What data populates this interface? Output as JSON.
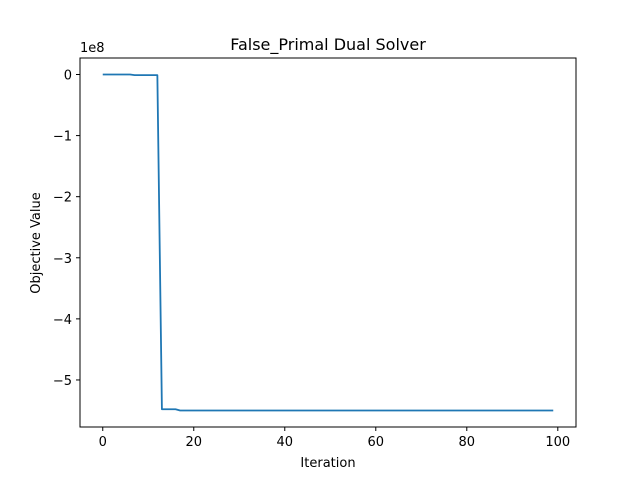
{
  "chart_data": {
    "type": "line",
    "title": "False_Primal Dual Solver",
    "xlabel": "Iteration",
    "ylabel": "Objective Value",
    "y_offset_label": "1e8",
    "y_scale_factor": 100000000,
    "xlim": [
      -5,
      104
    ],
    "ylim": [
      -5.77,
      0.27
    ],
    "x_ticks": [
      0,
      20,
      40,
      60,
      80,
      100
    ],
    "x_tick_labels": [
      "0",
      "20",
      "40",
      "60",
      "80",
      "100"
    ],
    "y_ticks": [
      0,
      -1,
      -2,
      -3,
      -4,
      -5
    ],
    "y_tick_labels": [
      "0",
      "−1",
      "−2",
      "−3",
      "−4",
      "−5"
    ],
    "grid": false,
    "series": [
      {
        "color": "#1f77b4",
        "x": [
          0,
          1,
          2,
          3,
          4,
          5,
          6,
          7,
          8,
          9,
          10,
          11,
          12,
          13,
          14,
          15,
          16,
          17,
          18,
          19,
          20,
          30,
          40,
          50,
          60,
          70,
          80,
          90,
          99
        ],
        "y": [
          0,
          0,
          0,
          0,
          0,
          0,
          0,
          -0.01,
          -0.01,
          -0.01,
          -0.01,
          -0.01,
          -0.01,
          -5.48,
          -5.48,
          -5.48,
          -5.48,
          -5.5,
          -5.5,
          -5.5,
          -5.5,
          -5.5,
          -5.5,
          -5.5,
          -5.5,
          -5.5,
          -5.5,
          -5.5,
          -5.5
        ]
      }
    ]
  }
}
